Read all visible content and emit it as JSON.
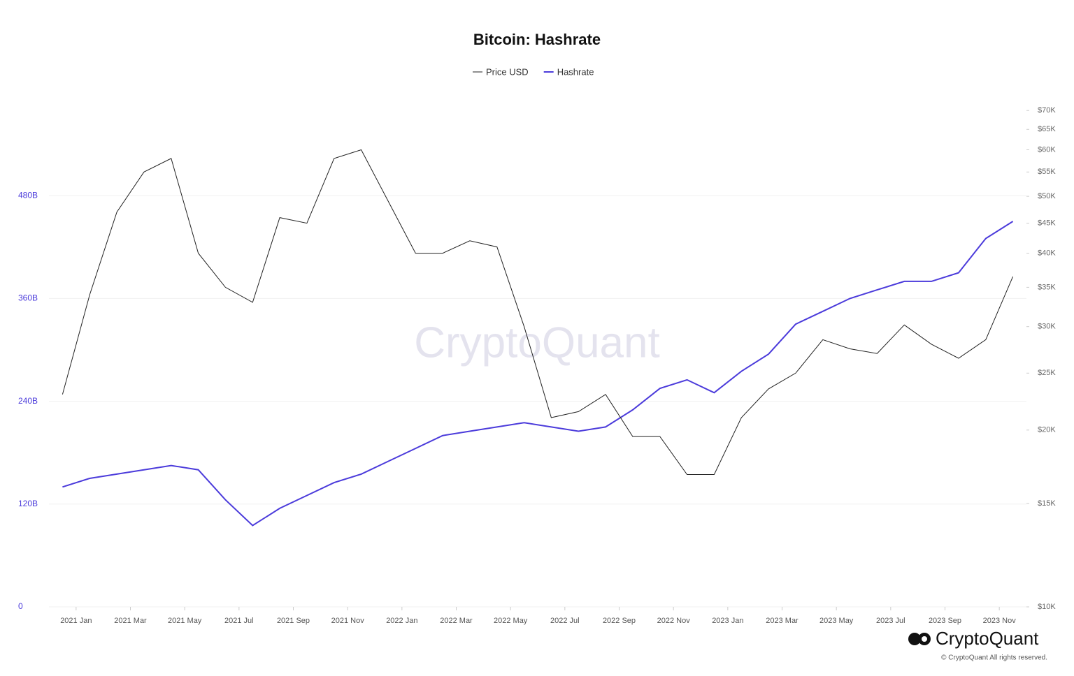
{
  "chart_data": {
    "type": "line",
    "title": "Bitcoin: Hashrate",
    "watermark": "CryptoQuant",
    "brand": "CryptoQuant",
    "copyright": "© CryptoQuant All rights reserved.",
    "x": [
      "2020-12",
      "2021-01",
      "2021-02",
      "2021-03",
      "2021-04",
      "2021-05",
      "2021-06",
      "2021-07",
      "2021-08",
      "2021-09",
      "2021-10",
      "2021-11",
      "2021-12",
      "2022-01",
      "2022-02",
      "2022-03",
      "2022-04",
      "2022-05",
      "2022-06",
      "2022-07",
      "2022-08",
      "2022-09",
      "2022-10",
      "2022-11",
      "2022-12",
      "2023-01",
      "2023-02",
      "2023-03",
      "2023-04",
      "2023-05",
      "2023-06",
      "2023-07",
      "2023-08",
      "2023-09",
      "2023-10",
      "2023-11"
    ],
    "xlim": [
      "2020-12",
      "2023-12"
    ],
    "xticks": [
      {
        "value": "2021-01",
        "label": "2021 Jan"
      },
      {
        "value": "2021-03",
        "label": "2021 Mar"
      },
      {
        "value": "2021-05",
        "label": "2021 May"
      },
      {
        "value": "2021-07",
        "label": "2021 Jul"
      },
      {
        "value": "2021-09",
        "label": "2021 Sep"
      },
      {
        "value": "2021-11",
        "label": "2021 Nov"
      },
      {
        "value": "2022-01",
        "label": "2022 Jan"
      },
      {
        "value": "2022-03",
        "label": "2022 Mar"
      },
      {
        "value": "2022-05",
        "label": "2022 May"
      },
      {
        "value": "2022-07",
        "label": "2022 Jul"
      },
      {
        "value": "2022-09",
        "label": "2022 Sep"
      },
      {
        "value": "2022-11",
        "label": "2022 Nov"
      },
      {
        "value": "2023-01",
        "label": "2023 Jan"
      },
      {
        "value": "2023-03",
        "label": "2023 Mar"
      },
      {
        "value": "2023-05",
        "label": "2023 May"
      },
      {
        "value": "2023-07",
        "label": "2023 Jul"
      },
      {
        "value": "2023-09",
        "label": "2023 Sep"
      },
      {
        "value": "2023-11",
        "label": "2023 Nov"
      }
    ],
    "ylim": [
      0,
      600
    ],
    "yticks": [
      0,
      {
        "value": 120,
        "label": "120B"
      },
      {
        "value": 240,
        "label": "240B"
      },
      {
        "value": 360,
        "label": "360B"
      },
      {
        "value": 480,
        "label": "480B"
      }
    ],
    "y2lim": [
      10000,
      75000
    ],
    "y2log": true,
    "y2ticks": [
      {
        "value": 10000,
        "label": "$10K"
      },
      {
        "value": 15000,
        "label": "$15K"
      },
      {
        "value": 20000,
        "label": "$20K"
      },
      {
        "value": 25000,
        "label": "$25K"
      },
      {
        "value": 30000,
        "label": "$30K"
      },
      {
        "value": 35000,
        "label": "$35K"
      },
      {
        "value": 40000,
        "label": "$40K"
      },
      {
        "value": 45000,
        "label": "$45K"
      },
      {
        "value": 50000,
        "label": "$50K"
      },
      {
        "value": 55000,
        "label": "$55K"
      },
      {
        "value": 60000,
        "label": "$60K"
      },
      {
        "value": 65000,
        "label": "$65K"
      },
      {
        "value": 70000,
        "label": "$70K"
      }
    ],
    "grid": true,
    "series": [
      {
        "name": "Price USD",
        "color": "#222222",
        "axis": "y2",
        "values": [
          23000,
          34000,
          47000,
          55000,
          58000,
          40000,
          35000,
          33000,
          46000,
          45000,
          58000,
          60000,
          49000,
          40000,
          40000,
          42000,
          41000,
          30000,
          21000,
          21500,
          23000,
          19500,
          19500,
          16800,
          16800,
          21000,
          23500,
          25000,
          28500,
          27500,
          27000,
          30200,
          28000,
          26500,
          28500,
          36500
        ]
      },
      {
        "name": "Hashrate",
        "color": "#4b3bdb",
        "values": [
          140,
          150,
          155,
          160,
          165,
          160,
          125,
          95,
          115,
          130,
          145,
          155,
          170,
          185,
          200,
          205,
          210,
          215,
          210,
          205,
          210,
          230,
          255,
          265,
          250,
          275,
          295,
          330,
          345,
          360,
          370,
          380,
          380,
          390,
          430,
          450
        ]
      }
    ]
  }
}
